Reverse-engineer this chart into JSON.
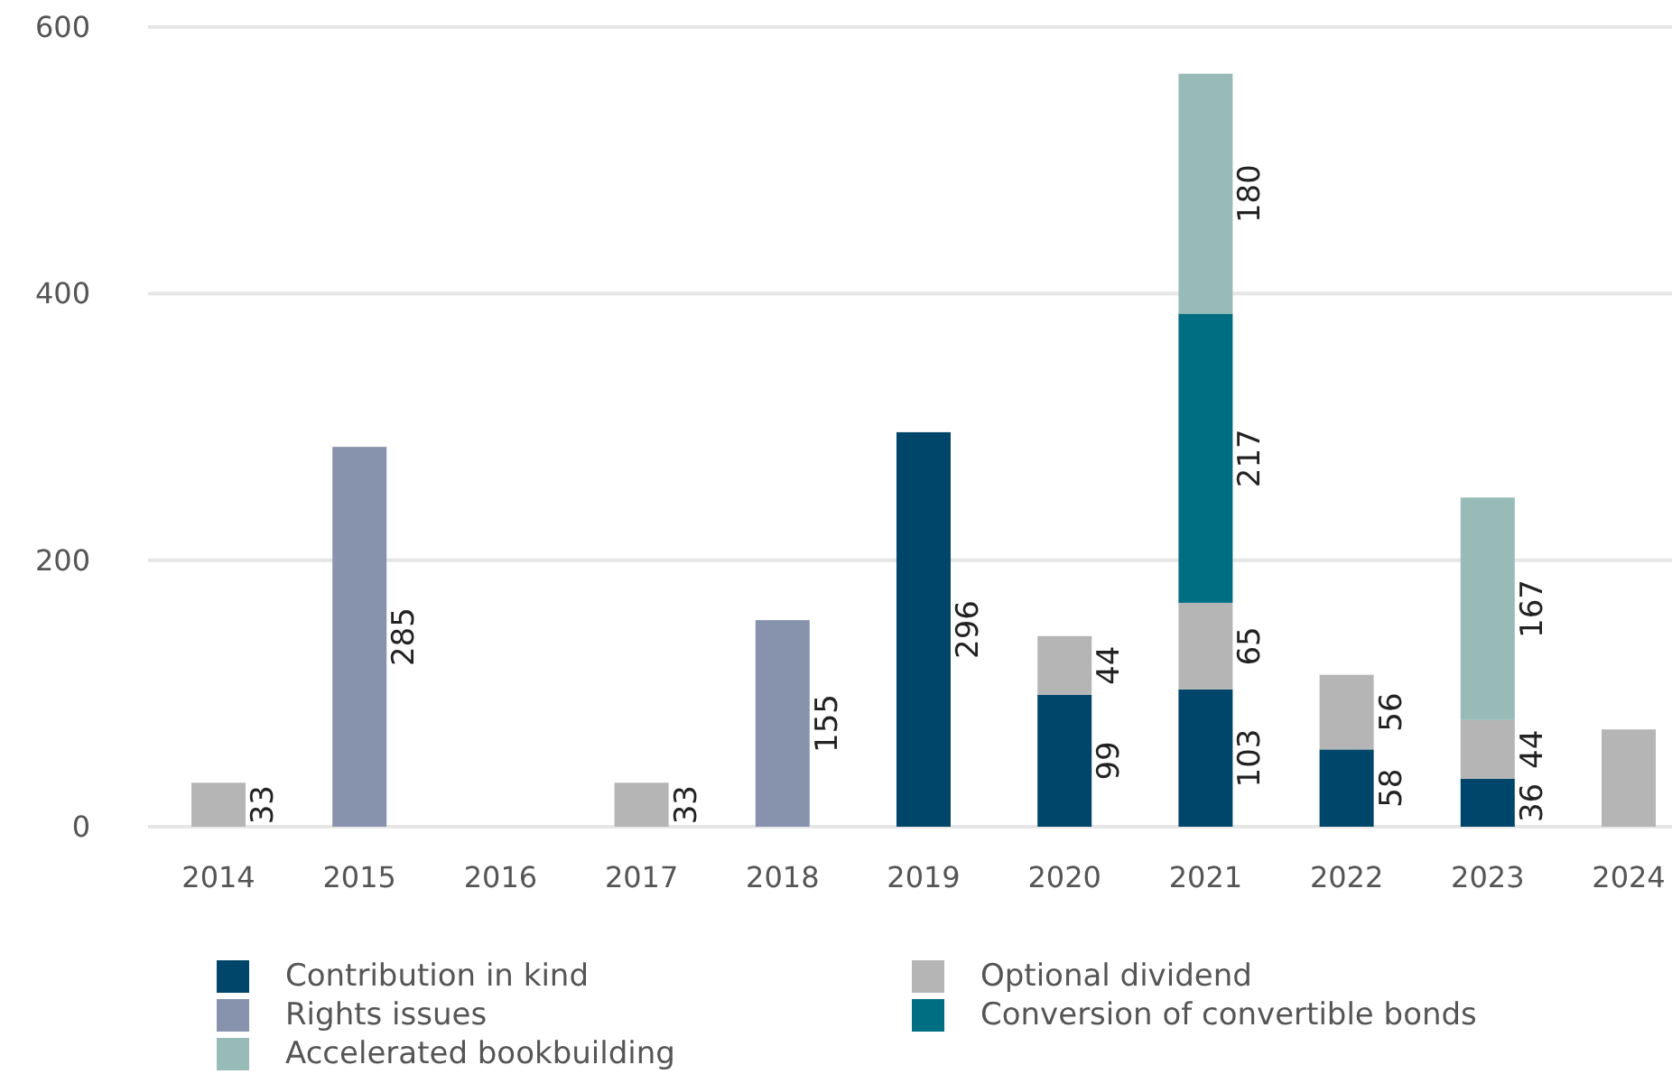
{
  "chart_data": {
    "type": "bar",
    "stacked": true,
    "categories": [
      "2014",
      "2015",
      "2016",
      "2017",
      "2018",
      "2019",
      "2020",
      "2021",
      "2022",
      "2023",
      "2024"
    ],
    "series": [
      {
        "name": "Contribution in kind",
        "color": "#00466a",
        "values": [
          null,
          null,
          null,
          null,
          null,
          296,
          99,
          103,
          58,
          36,
          null
        ],
        "value_labels": [
          null,
          null,
          null,
          null,
          null,
          "296",
          "99",
          "103",
          "58",
          "36",
          null
        ]
      },
      {
        "name": "Optional dividend",
        "color": "#b5b5b5",
        "values": [
          33,
          null,
          null,
          33,
          null,
          null,
          44,
          65,
          56,
          44,
          73
        ],
        "value_labels": [
          "33",
          null,
          null,
          "33",
          null,
          null,
          "44",
          "65",
          "56",
          "44",
          null
        ]
      },
      {
        "name": "Rights issues",
        "color": "#8793ad",
        "values": [
          null,
          285,
          null,
          null,
          155,
          null,
          null,
          null,
          null,
          null,
          null
        ],
        "value_labels": [
          null,
          "285",
          null,
          null,
          "155",
          null,
          null,
          null,
          null,
          null,
          null
        ]
      },
      {
        "name": "Conversion of convertible bonds",
        "color": "#006e82",
        "values": [
          null,
          null,
          null,
          null,
          null,
          null,
          null,
          217,
          null,
          null,
          null
        ],
        "value_labels": [
          null,
          null,
          null,
          null,
          null,
          null,
          null,
          "217",
          null,
          null,
          null
        ]
      },
      {
        "name": "Accelerated bookbuilding",
        "color": "#98bbb7",
        "values": [
          null,
          null,
          null,
          null,
          null,
          null,
          null,
          180,
          null,
          167,
          null
        ],
        "value_labels": [
          null,
          null,
          null,
          null,
          null,
          null,
          null,
          "180",
          null,
          "167",
          null
        ]
      }
    ],
    "ylim": [
      0,
      600
    ],
    "yticks": [
      0,
      200,
      400,
      600
    ],
    "grid": "y",
    "legend": "bottom"
  }
}
